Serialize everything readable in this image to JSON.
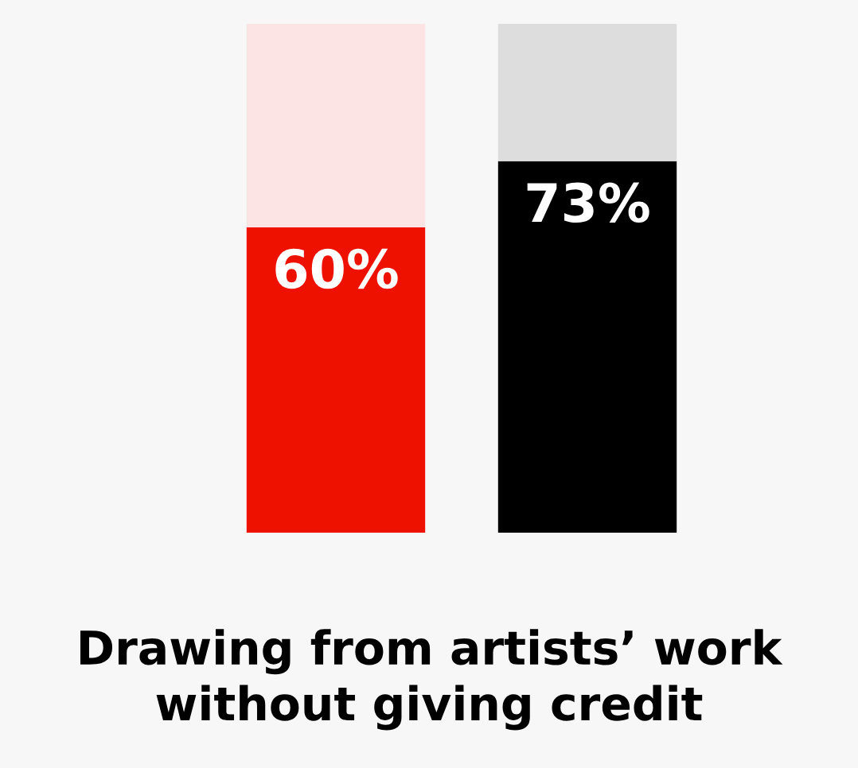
{
  "chart_data": {
    "type": "bar",
    "title": "Drawing from artists’ work without giving credit",
    "categories": [
      null,
      null
    ],
    "stacked": true,
    "series": [
      {
        "colors": [
          "#ee1100",
          "#000000"
        ],
        "values": [
          60,
          73
        ],
        "value_labels": [
          "60%",
          "73%"
        ]
      },
      {
        "colors": [
          "#fde4e4",
          "#dddddd"
        ],
        "values": [
          40,
          27
        ]
      }
    ],
    "ylim": [
      0,
      100
    ],
    "grid": false,
    "legend": false
  }
}
